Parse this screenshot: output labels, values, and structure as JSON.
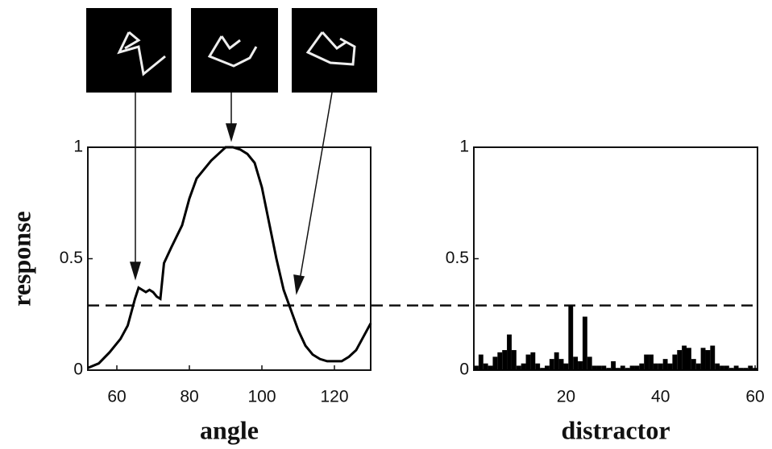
{
  "chart_data": [
    {
      "type": "line",
      "xlabel": "angle",
      "ylabel": "response",
      "color": "#000000",
      "x": [
        52,
        55,
        58,
        61,
        63,
        65,
        66,
        68,
        69,
        70,
        71,
        72,
        73,
        75,
        78,
        80,
        82,
        84,
        86,
        88,
        90,
        92,
        94,
        96,
        98,
        100,
        102,
        104,
        106,
        108,
        110,
        112,
        114,
        116,
        118,
        120,
        122,
        124,
        126,
        128,
        130
      ],
      "values": [
        0.01,
        0.03,
        0.08,
        0.14,
        0.2,
        0.32,
        0.37,
        0.35,
        0.36,
        0.35,
        0.33,
        0.32,
        0.48,
        0.55,
        0.65,
        0.77,
        0.86,
        0.9,
        0.94,
        0.97,
        1.0,
        1.0,
        0.99,
        0.97,
        0.93,
        0.82,
        0.66,
        0.5,
        0.36,
        0.27,
        0.18,
        0.11,
        0.07,
        0.05,
        0.04,
        0.04,
        0.04,
        0.06,
        0.09,
        0.15,
        0.21
      ],
      "xlim": [
        52,
        130
      ],
      "xticks": [
        60,
        80,
        100,
        120
      ],
      "ylim": [
        0,
        1
      ],
      "yticks": [
        0,
        0.5,
        1
      ],
      "threshold": 0.29
    },
    {
      "type": "bar",
      "xlabel": "distractor",
      "color": "#000000",
      "x": [
        1,
        2,
        3,
        4,
        5,
        6,
        7,
        8,
        9,
        10,
        11,
        12,
        13,
        14,
        15,
        16,
        17,
        18,
        19,
        20,
        21,
        22,
        23,
        24,
        25,
        26,
        27,
        28,
        29,
        30,
        31,
        32,
        33,
        34,
        35,
        36,
        37,
        38,
        39,
        40,
        41,
        42,
        43,
        44,
        45,
        46,
        47,
        48,
        49,
        50,
        51,
        52,
        53,
        54,
        55,
        56,
        57,
        58,
        59,
        60
      ],
      "values": [
        0.02,
        0.07,
        0.03,
        0.02,
        0.06,
        0.08,
        0.09,
        0.16,
        0.09,
        0.02,
        0.03,
        0.07,
        0.08,
        0.03,
        0.01,
        0.02,
        0.05,
        0.08,
        0.05,
        0.03,
        0.29,
        0.06,
        0.04,
        0.24,
        0.06,
        0.02,
        0.02,
        0.02,
        0.01,
        0.04,
        0.01,
        0.02,
        0.01,
        0.02,
        0.02,
        0.03,
        0.07,
        0.07,
        0.03,
        0.03,
        0.05,
        0.03,
        0.07,
        0.09,
        0.11,
        0.1,
        0.05,
        0.03,
        0.1,
        0.09,
        0.11,
        0.03,
        0.02,
        0.02,
        0.01,
        0.02,
        0.01,
        0.01,
        0.02,
        0.01
      ],
      "xlim": [
        0.5,
        60.5
      ],
      "xticks": [
        20,
        40,
        60
      ],
      "ylim": [
        0,
        1
      ],
      "yticks": [
        0,
        0.5,
        1
      ],
      "threshold": 0.29
    }
  ]
}
